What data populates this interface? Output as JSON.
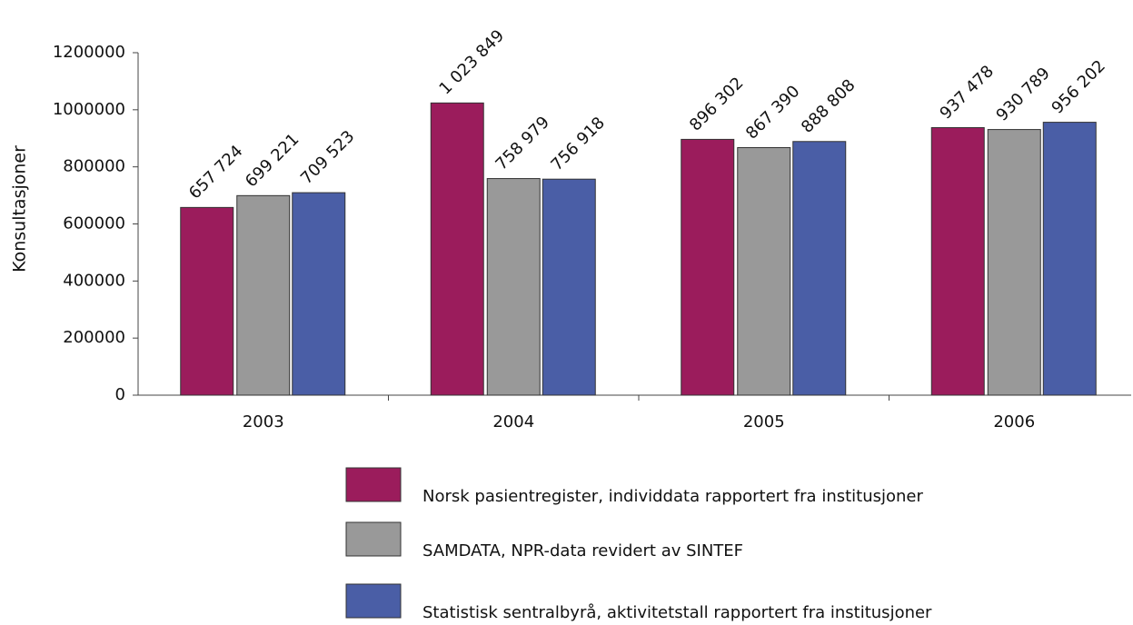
{
  "chart_data": {
    "type": "bar",
    "y_label": "Konsultasjoner",
    "categories": [
      "2003",
      "2004",
      "2005",
      "2006"
    ],
    "series": [
      {
        "name": "Norsk pasientregister, individdata rapportert fra institusjoner",
        "color": "#9b1c5c",
        "values": [
          657724,
          1023849,
          896302,
          937478
        ],
        "value_labels": [
          "657 724",
          "1 023 849",
          "896 302",
          "937 478"
        ]
      },
      {
        "name": "SAMDATA, NPR-data revidert av SINTEF",
        "color": "#999999",
        "values": [
          699221,
          758979,
          867390,
          930789
        ],
        "value_labels": [
          "699 221",
          "758 979",
          "867 390",
          "930 789"
        ]
      },
      {
        "name": "Statistisk sentralbyrå, aktivitetstall rapportert fra institusjoner",
        "color": "#4a5ea6",
        "values": [
          709523,
          756918,
          888808,
          956202
        ],
        "value_labels": [
          "709 523",
          "756 918",
          "888 808",
          "956 202"
        ]
      }
    ],
    "ylim": [
      0,
      1200000
    ],
    "yticks": [
      0,
      200000,
      400000,
      600000,
      800000,
      1000000,
      1200000
    ]
  }
}
